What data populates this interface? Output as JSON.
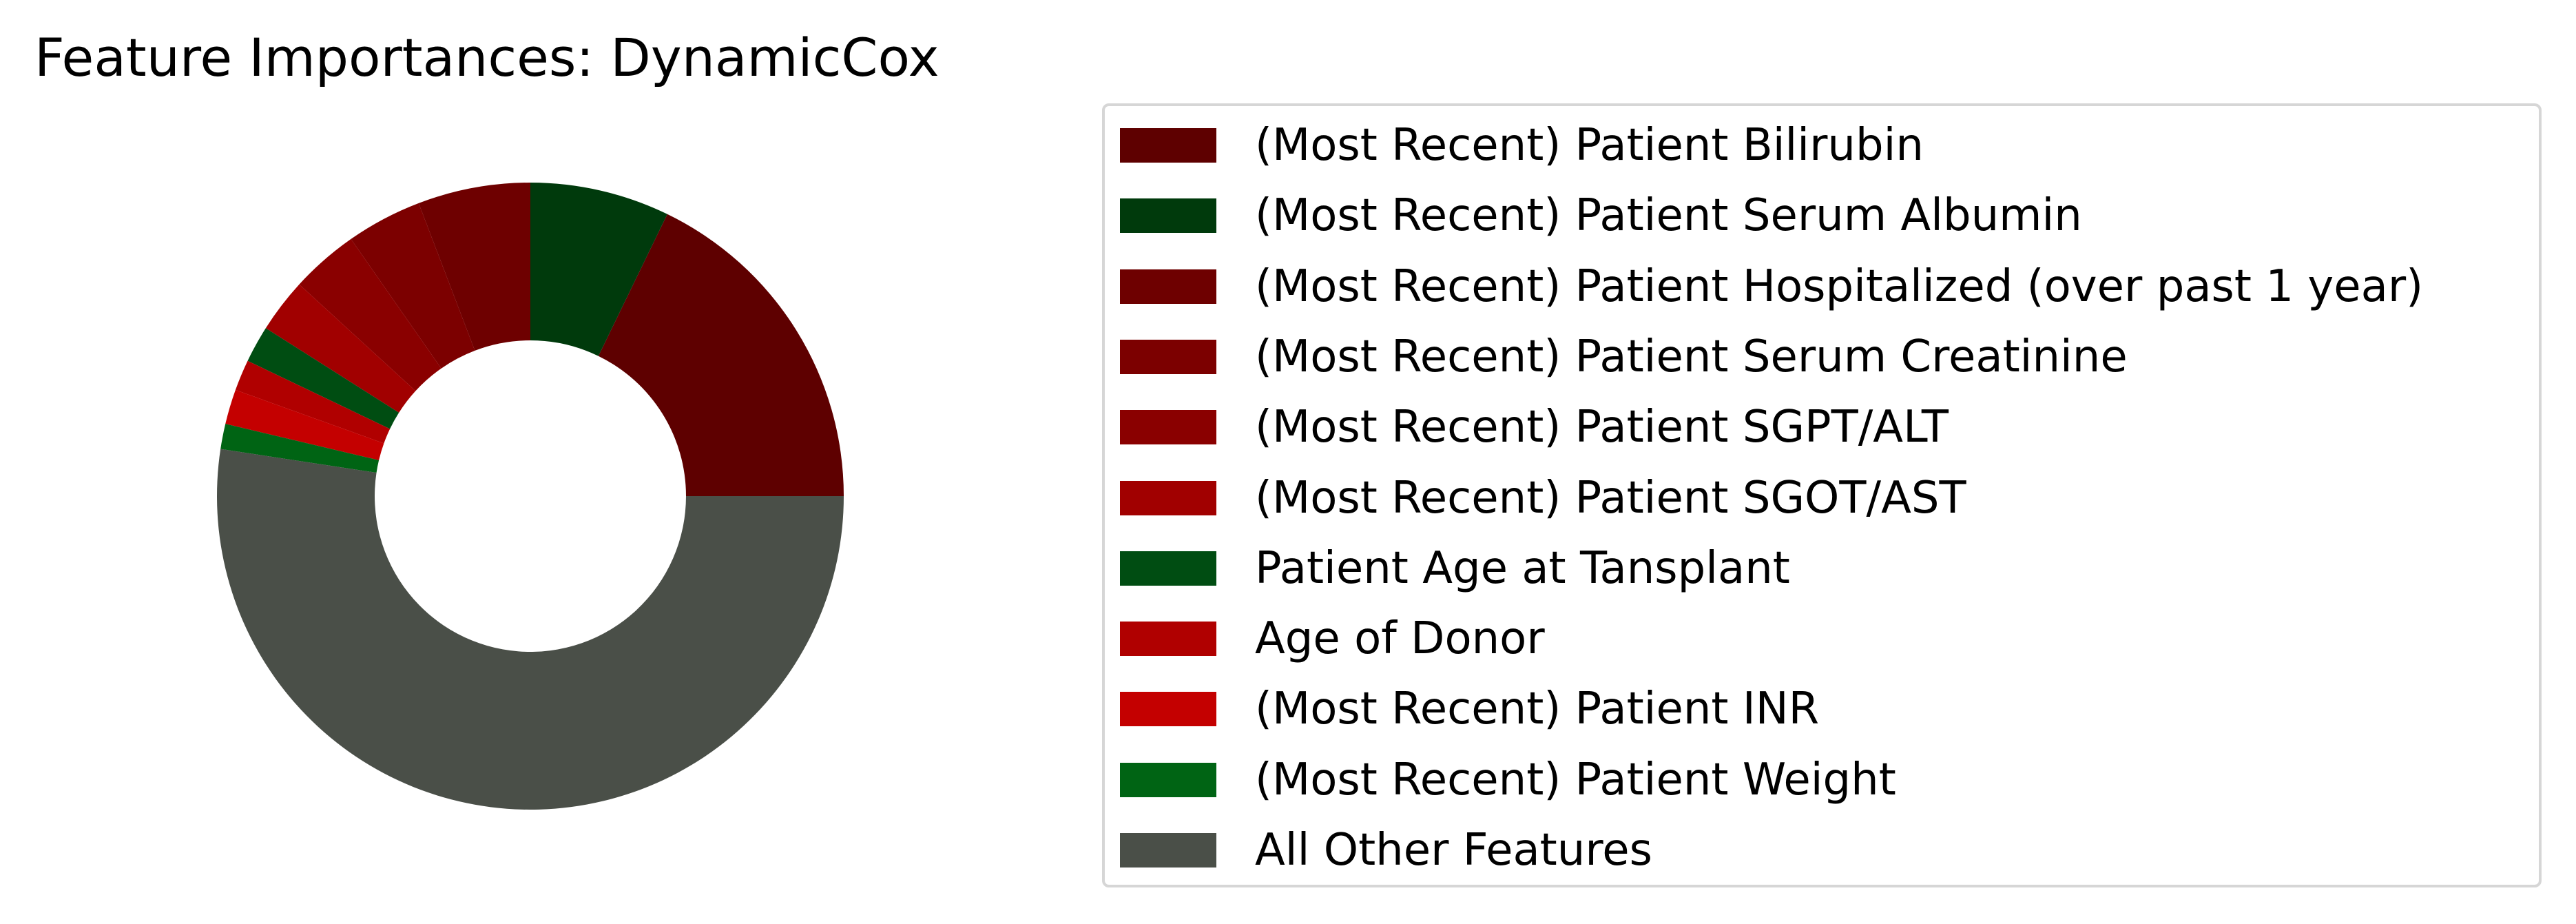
{
  "chart_data": {
    "type": "pie",
    "donut": true,
    "title": "Feature Importances: DynamicCox",
    "legend_position": "right",
    "slices": [
      {
        "label": "(Most Recent) Patient Bilirubin",
        "value": 17.8,
        "color": "#5e0000"
      },
      {
        "label": "(Most Recent) Patient Serum Albumin",
        "value": 7.2,
        "color": "#003a0c"
      },
      {
        "label": "(Most Recent) Patient Hospitalized (over past 1 year)",
        "value": 5.8,
        "color": "#6e0000"
      },
      {
        "label": "(Most Recent) Patient Serum Creatinine",
        "value": 3.9,
        "color": "#7c0000"
      },
      {
        "label": "(Most Recent) Patient SGPT/ALT",
        "value": 3.5,
        "color": "#8a0000"
      },
      {
        "label": "(Most Recent) Patient SGOT/AST",
        "value": 2.8,
        "color": "#a10000"
      },
      {
        "label": "Patient Age at Tansplant",
        "value": 1.9,
        "color": "#004d12"
      },
      {
        "label": "Age of Donor",
        "value": 1.6,
        "color": "#b00000"
      },
      {
        "label": "(Most Recent) Patient INR",
        "value": 1.8,
        "color": "#c40000"
      },
      {
        "label": "(Most Recent) Patient Weight",
        "value": 1.3,
        "color": "#006414"
      },
      {
        "label": "All Other Features",
        "value": 52.4,
        "color": "#4a4f48"
      }
    ]
  }
}
